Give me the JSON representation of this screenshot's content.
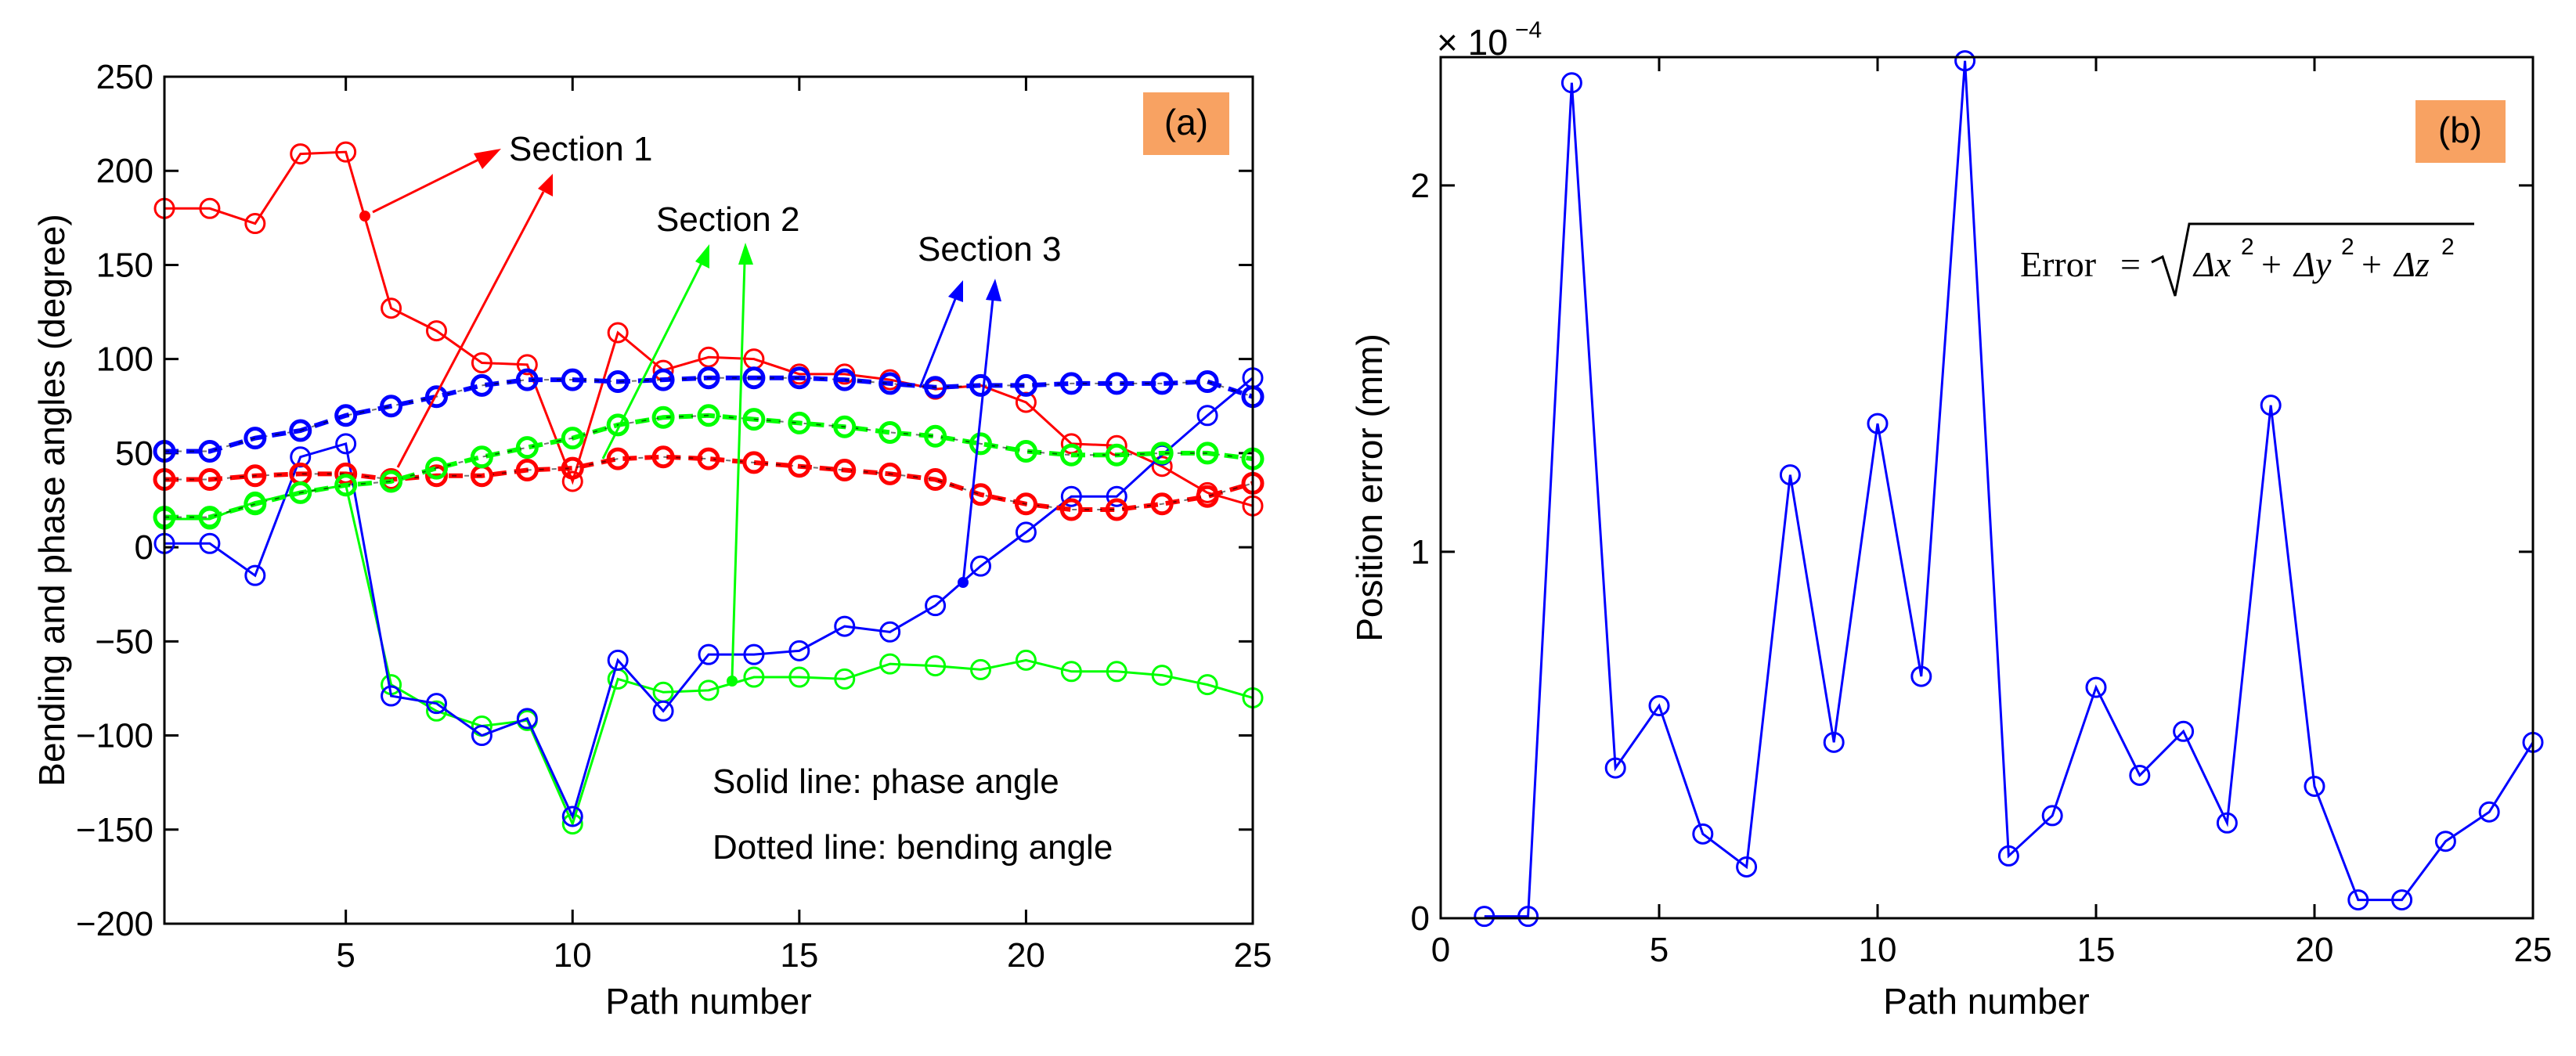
{
  "chart_data": [
    {
      "type": "line",
      "panel_label": "(a)",
      "xlabel": "Path number",
      "ylabel": "Bending and phase angles (degree)",
      "xlim": [
        1,
        25
      ],
      "ylim": [
        -200,
        250
      ],
      "xticks": [
        5,
        10,
        15,
        20,
        25
      ],
      "yticks": [
        -200,
        -150,
        -100,
        -50,
        0,
        50,
        100,
        150,
        200,
        250
      ],
      "x": [
        1,
        2,
        3,
        4,
        5,
        6,
        7,
        8,
        9,
        10,
        11,
        12,
        13,
        14,
        15,
        16,
        17,
        18,
        19,
        20,
        21,
        22,
        23,
        24,
        25
      ],
      "series": [
        {
          "color": "#ff0000",
          "style": "solid",
          "values": [
            180,
            180,
            172,
            209,
            210,
            127,
            115,
            98,
            97,
            35,
            114,
            94,
            101,
            100,
            92,
            92,
            89,
            84,
            86,
            77,
            55,
            54,
            43,
            29,
            22
          ]
        },
        {
          "color": "#00ff00",
          "style": "solid",
          "values": [
            15,
            15,
            24,
            29,
            33,
            -73,
            -87,
            -95,
            -92,
            -147,
            -70,
            -77,
            -76,
            -69,
            -69,
            -70,
            -62,
            -63,
            -65,
            -60,
            -66,
            -66,
            -68,
            -73,
            -80
          ]
        },
        {
          "color": "#0000ff",
          "style": "solid",
          "values": [
            2,
            2,
            -15,
            48,
            55,
            -79,
            -83,
            -100,
            -91,
            -143,
            -60,
            -87,
            -57,
            -57,
            -55,
            -42,
            -45,
            -31,
            -10,
            8,
            27,
            27,
            49,
            70,
            90
          ]
        },
        {
          "color": "#ff0000",
          "style": "dashed",
          "values": [
            36,
            36,
            38,
            39,
            39,
            36,
            38,
            38,
            41,
            42,
            47,
            48,
            47,
            45,
            43,
            41,
            39,
            36,
            28,
            23,
            20,
            20,
            23,
            27,
            34
          ]
        },
        {
          "color": "#00ff00",
          "style": "dashed",
          "values": [
            16,
            16,
            23,
            29,
            33,
            35,
            42,
            48,
            53,
            58,
            65,
            69,
            70,
            68,
            66,
            64,
            61,
            59,
            55,
            51,
            49,
            49,
            50,
            50,
            47
          ]
        },
        {
          "color": "#0000ff",
          "style": "dashed",
          "values": [
            51,
            51,
            58,
            62,
            70,
            75,
            80,
            86,
            89,
            89,
            88,
            89,
            90,
            90,
            90,
            89,
            87,
            85,
            86,
            86,
            87,
            87,
            87,
            88,
            80
          ]
        }
      ],
      "annotations": [
        "Section 1",
        "Section 2",
        "Section 3",
        "Solid line: phase angle",
        "Dotted line: bending angle"
      ]
    },
    {
      "type": "line",
      "panel_label": "(b)",
      "xlabel": "Path number",
      "ylabel": "Position error (mm)",
      "exponent_label": "× 10",
      "exponent": "−4",
      "xlim": [
        0,
        25
      ],
      "ylim": [
        0,
        2.35
      ],
      "xticks": [
        0,
        5,
        10,
        15,
        20,
        25
      ],
      "yticks": [
        0,
        1,
        2
      ],
      "x": [
        1,
        2,
        3,
        4,
        5,
        6,
        7,
        8,
        9,
        10,
        11,
        12,
        13,
        14,
        15,
        16,
        17,
        18,
        19,
        20,
        21,
        22,
        23,
        24,
        25
      ],
      "series": [
        {
          "color": "#0000ff",
          "style": "solid",
          "values": [
            0.005,
            0.005,
            2.28,
            0.41,
            0.58,
            0.23,
            0.14,
            1.21,
            0.48,
            1.35,
            0.66,
            2.34,
            0.17,
            0.28,
            0.63,
            0.39,
            0.51,
            0.26,
            1.4,
            0.36,
            0.05,
            0.05,
            0.21,
            0.29,
            0.48
          ]
        }
      ],
      "formula": {
        "lhs": "Error",
        "eq": "=",
        "terms": [
          "Δx",
          "Δy",
          "Δz"
        ],
        "power": "2",
        "op": "+"
      }
    }
  ]
}
